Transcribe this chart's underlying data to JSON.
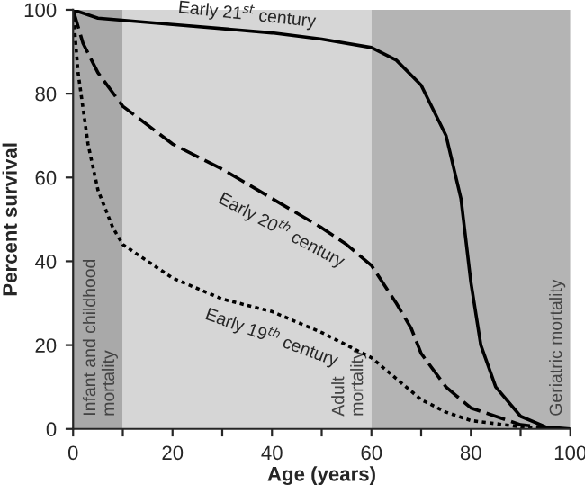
{
  "chart_data": {
    "type": "line",
    "xlabel": "Age (years)",
    "ylabel": "Percent survival",
    "xlim": [
      0,
      100
    ],
    "ylim": [
      0,
      100
    ],
    "xticks": [
      0,
      {
        "value": 10,
        "label": null
      },
      20,
      {
        "value": 30,
        "label": null
      },
      40,
      {
        "value": 50,
        "label": null
      },
      60,
      {
        "value": 70,
        "label": null
      },
      80,
      {
        "value": 90,
        "label": null
      },
      100
    ],
    "yticks": [
      0,
      20,
      40,
      60,
      80,
      100
    ],
    "grid": false,
    "legend": false,
    "bands": [
      {
        "axis": "x",
        "from": 0,
        "to": 10,
        "label": "Infant and childhood\nmortality",
        "color": "#a9a9a9"
      },
      {
        "axis": "x",
        "from": 10,
        "to": 60,
        "label": "Adult\nmortality",
        "color": "#d6d6d6"
      },
      {
        "axis": "x",
        "from": 60,
        "to": 100,
        "label": "Geriatric mortality",
        "color": "#b4b4b4"
      }
    ],
    "series": [
      {
        "name": "Early 21$^{st}$ century",
        "color": "#000000",
        "line_style": "solid",
        "x": [
          0,
          5,
          20,
          40,
          50,
          60,
          65,
          70,
          75,
          78,
          80,
          82,
          85,
          90,
          95,
          100
        ],
        "values": [
          100,
          98,
          96.5,
          94.5,
          93,
          91,
          88,
          82,
          70,
          55,
          35,
          20,
          10,
          3,
          0.5,
          0
        ]
      },
      {
        "name": "Early 20$^{th}$ century",
        "color": "#000000",
        "line_style": "dashed",
        "x": [
          0,
          2,
          5,
          10,
          20,
          30,
          40,
          50,
          55,
          60,
          65,
          68,
          70,
          75,
          80,
          90,
          98
        ],
        "values": [
          100,
          92,
          85,
          77,
          68,
          62,
          55,
          48,
          44,
          39,
          30,
          24,
          18,
          10,
          5,
          1,
          0
        ]
      },
      {
        "name": "Early 19$^{th}$ century",
        "color": "#000000",
        "line_style": "dotted",
        "x": [
          0,
          1,
          3,
          5,
          8,
          10,
          20,
          30,
          40,
          50,
          60,
          65,
          70,
          75,
          80,
          90,
          96
        ],
        "values": [
          100,
          85,
          68,
          57,
          48,
          44,
          36,
          31,
          28,
          23,
          17,
          12,
          7,
          4,
          2,
          0.5,
          0
        ]
      }
    ]
  }
}
